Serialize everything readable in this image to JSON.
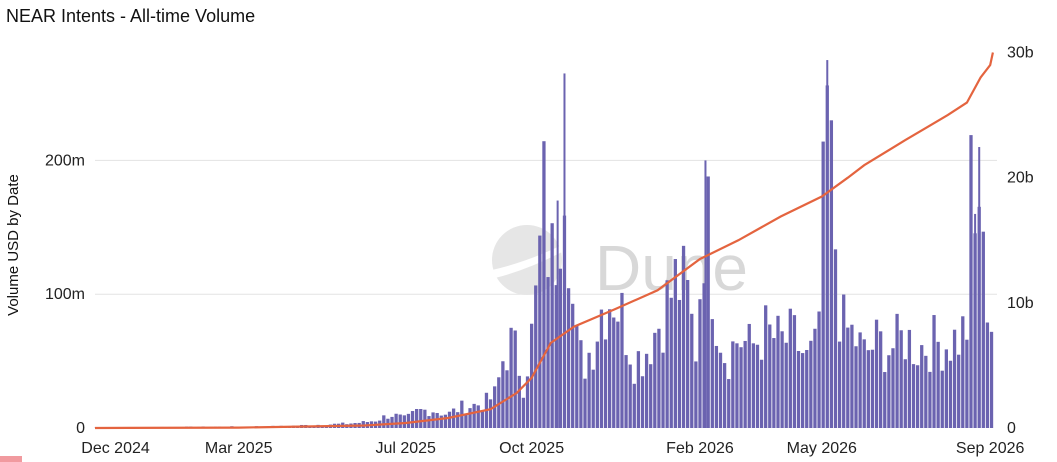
{
  "title": "NEAR Intents - All-time Volume",
  "watermark": "Dune",
  "colors": {
    "bar": "#6b63b0",
    "line": "#e4643f",
    "grid": "#e3e3e3"
  },
  "chart_data": {
    "type": "bar",
    "title": "NEAR Intents - All-time Volume",
    "ylabel": "Volume USD by Date",
    "y2label": "",
    "ylim": [
      0,
      290000000
    ],
    "y2lim": [
      0,
      31000000000
    ],
    "yticks": [
      0,
      100000000,
      200000000
    ],
    "ytick_labels": [
      "0",
      "100m",
      "200m"
    ],
    "y2ticks": [
      0,
      10000000000,
      20000000000,
      30000000000
    ],
    "y2tick_labels": [
      "0",
      "10b",
      "20b",
      "30b"
    ],
    "x_range": [
      "2024-11-16",
      "2026-09-06"
    ],
    "xticks": [
      "2024-12-01",
      "2025-03-01",
      "2025-07-01",
      "2025-10-01",
      "2026-02-01",
      "2026-05-01",
      "2026-09-01"
    ],
    "xtick_labels": [
      "Dec 2024",
      "Mar 2025",
      "Jul 2025",
      "Oct 2025",
      "Feb 2026",
      "May 2026",
      "Sep 2026"
    ],
    "grid": true,
    "series": [
      {
        "type": "bar",
        "axis": "left",
        "name": "",
        "x": [
          "2024-11-17",
          "2024-12-01",
          "2025-01-01",
          "2025-02-01",
          "2025-03-01",
          "2025-04-01",
          "2025-05-01",
          "2025-05-15",
          "2025-06-01",
          "2025-06-10",
          "2025-06-20",
          "2025-07-01",
          "2025-07-10",
          "2025-07-20",
          "2025-08-01",
          "2025-08-10",
          "2025-08-20",
          "2025-08-28",
          "2025-09-05",
          "2025-09-10",
          "2025-09-15",
          "2025-09-20",
          "2025-09-25",
          "2025-10-01",
          "2025-10-05",
          "2025-10-10",
          "2025-10-15",
          "2025-10-20",
          "2025-10-25",
          "2025-11-01",
          "2025-11-08",
          "2025-11-15",
          "2025-11-22",
          "2025-11-30",
          "2025-12-07",
          "2025-12-15",
          "2025-12-22",
          "2026-01-01",
          "2026-01-08",
          "2026-01-15",
          "2026-01-22",
          "2026-01-29",
          "2026-02-05",
          "2026-02-12",
          "2026-02-20",
          "2026-03-01",
          "2026-03-10",
          "2026-03-20",
          "2026-04-01",
          "2026-04-10",
          "2026-04-20",
          "2026-04-28",
          "2026-05-05",
          "2026-05-15",
          "2026-05-25",
          "2026-06-01",
          "2026-06-10",
          "2026-06-20",
          "2026-07-01",
          "2026-07-10",
          "2026-07-20",
          "2026-08-01",
          "2026-08-10",
          "2026-08-15",
          "2026-08-18",
          "2026-08-21",
          "2026-08-24",
          "2026-08-27",
          "2026-08-30",
          "2026-09-01",
          "2026-09-03"
        ],
        "values": [
          500000,
          600000,
          800000,
          1000000,
          1200000,
          1500000,
          3000000,
          3500000,
          5000000,
          7000000,
          12000000,
          8000000,
          15000000,
          16000000,
          12000000,
          18000000,
          20000000,
          22000000,
          30000000,
          60000000,
          75000000,
          65000000,
          40000000,
          80000000,
          120000000,
          200000000,
          140000000,
          170000000,
          265000000,
          80000000,
          55000000,
          75000000,
          110000000,
          120000000,
          95000000,
          60000000,
          65000000,
          90000000,
          110000000,
          130000000,
          120000000,
          70000000,
          200000000,
          110000000,
          60000000,
          80000000,
          70000000,
          85000000,
          75000000,
          80000000,
          60000000,
          70000000,
          275000000,
          90000000,
          80000000,
          65000000,
          75000000,
          70000000,
          80000000,
          70000000,
          75000000,
          75000000,
          80000000,
          90000000,
          200000000,
          160000000,
          210000000,
          140000000,
          120000000,
          100000000,
          90000000
        ]
      },
      {
        "type": "line",
        "axis": "right",
        "name": "",
        "x": [
          "2024-11-16",
          "2025-03-01",
          "2025-06-01",
          "2025-07-01",
          "2025-08-01",
          "2025-09-01",
          "2025-09-20",
          "2025-10-01",
          "2025-10-15",
          "2025-11-01",
          "2025-12-01",
          "2026-01-01",
          "2026-02-01",
          "2026-03-01",
          "2026-04-01",
          "2026-05-01",
          "2026-05-20",
          "2026-06-01",
          "2026-07-01",
          "2026-08-01",
          "2026-08-15",
          "2026-08-25",
          "2026-09-01",
          "2026-09-03"
        ],
        "values": [
          0,
          30000000,
          200000000,
          400000000,
          800000000,
          1500000000,
          2800000000,
          4000000000,
          6800000000,
          8100000000,
          9500000000,
          11000000000,
          13500000000,
          15000000000,
          16900000000,
          18500000000,
          20000000000,
          21000000000,
          23000000000,
          25000000000,
          26000000000,
          28000000000,
          29000000000,
          30000000000
        ]
      }
    ]
  }
}
